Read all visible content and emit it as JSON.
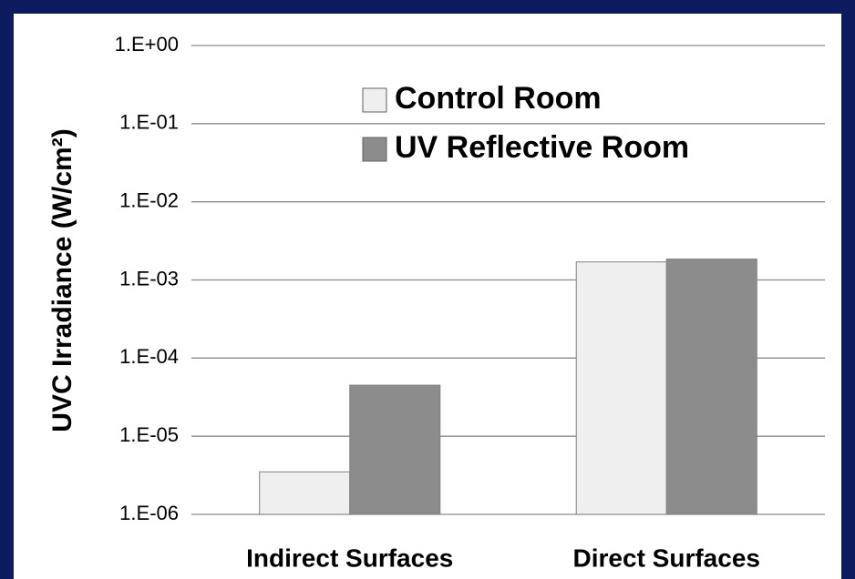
{
  "chart_data": {
    "type": "bar",
    "y_label": "UVC Irradiance (W/cm²)",
    "categories": [
      "Indirect Surfaces",
      "Direct Surfaces"
    ],
    "series": [
      {
        "name": "Control Room",
        "color": "#efefef",
        "values": [
          3.5e-06,
          0.0017
        ]
      },
      {
        "name": "UV Reflective Room",
        "color": "#8c8c8c",
        "values": [
          4.5e-05,
          0.00185
        ]
      }
    ],
    "ylim": [
      1e-06,
      1
    ],
    "yticks": [
      {
        "value": 1,
        "label": "1.E+00"
      },
      {
        "value": 0.1,
        "label": "1.E-01"
      },
      {
        "value": 0.01,
        "label": "1.E-02"
      },
      {
        "value": 0.001,
        "label": "1.E-03"
      },
      {
        "value": 0.0001,
        "label": "1.E-04"
      },
      {
        "value": 1e-05,
        "label": "1.E-05"
      },
      {
        "value": 1e-06,
        "label": "1.E-06"
      }
    ],
    "log_y": true,
    "grid": true,
    "legend": "top"
  }
}
